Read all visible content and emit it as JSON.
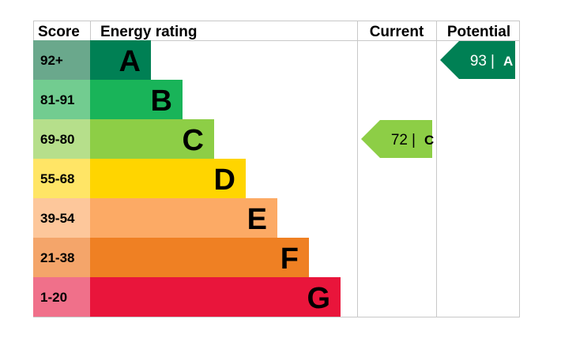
{
  "chart_data": {
    "type": "bar",
    "headers": {
      "score": "Score",
      "rating": "Energy rating",
      "current": "Current",
      "potential": "Potential"
    },
    "bands": [
      {
        "range": "92+",
        "letter": "A",
        "color": "#008054",
        "score_color": "#6aa88c"
      },
      {
        "range": "81-91",
        "letter": "B",
        "color": "#19b459",
        "score_color": "#72cc90"
      },
      {
        "range": "69-80",
        "letter": "C",
        "color": "#8dce46",
        "score_color": "#b6df8b"
      },
      {
        "range": "55-68",
        "letter": "D",
        "color": "#ffd500",
        "score_color": "#ffe566"
      },
      {
        "range": "39-54",
        "letter": "E",
        "color": "#fcaa65",
        "score_color": "#fdc79b"
      },
      {
        "range": "21-38",
        "letter": "F",
        "color": "#ef8023",
        "score_color": "#f4a56a"
      },
      {
        "range": "1-20",
        "letter": "G",
        "color": "#e9153b",
        "score_color": "#f0708a"
      }
    ],
    "current": {
      "value": 72,
      "letter": "C",
      "separator": "|",
      "color": "#8dce46"
    },
    "potential": {
      "value": 93,
      "letter": "A",
      "separator": "|",
      "color": "#008054"
    }
  }
}
